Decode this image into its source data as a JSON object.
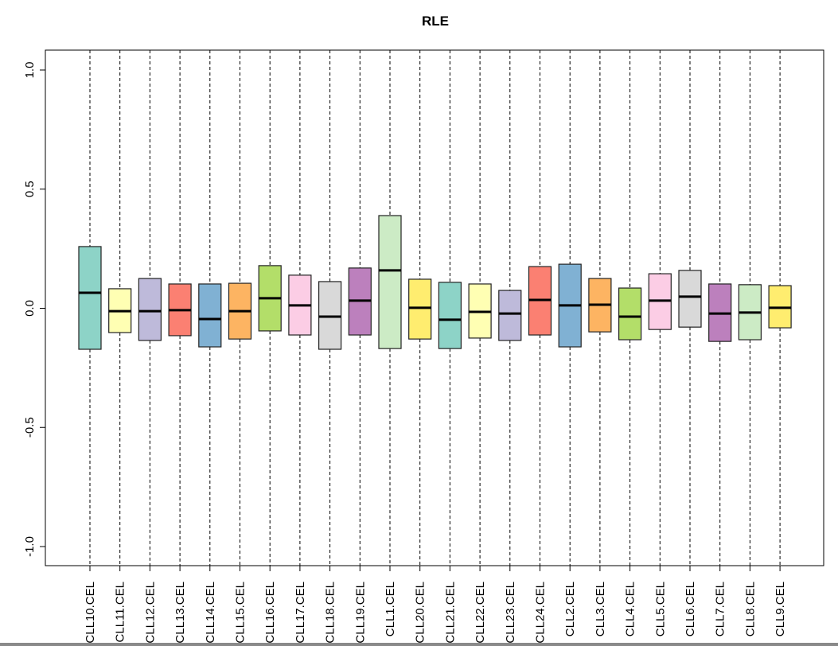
{
  "chart_data": {
    "type": "boxplot",
    "title": "RLE",
    "xlabel": "",
    "ylabel": "",
    "ylim": [
      -1.08,
      1.08
    ],
    "yticks": [
      -1.0,
      -0.5,
      0.0,
      0.5,
      1.0
    ],
    "ytick_labels": [
      "-1.0",
      "-0.5",
      "0.0",
      "0.5",
      "1.0"
    ],
    "grid": false,
    "categories": [
      "CLL10.CEL",
      "CLL11.CEL",
      "CLL12.CEL",
      "CLL13.CEL",
      "CLL14.CEL",
      "CLL15.CEL",
      "CLL16.CEL",
      "CLL17.CEL",
      "CLL18.CEL",
      "CLL19.CEL",
      "CLL1.CEL",
      "CLL20.CEL",
      "CLL21.CEL",
      "CLL22.CEL",
      "CLL23.CEL",
      "CLL24.CEL",
      "CLL2.CEL",
      "CLL3.CEL",
      "CLL4.CEL",
      "CLL5.CEL",
      "CLL6.CEL",
      "CLL7.CEL",
      "CLL8.CEL",
      "CLL9.CEL"
    ],
    "q3": [
      0.259,
      0.082,
      0.125,
      0.102,
      0.102,
      0.105,
      0.179,
      0.139,
      0.112,
      0.169,
      0.389,
      0.122,
      0.109,
      0.102,
      0.075,
      0.175,
      0.185,
      0.125,
      0.085,
      0.145,
      0.159,
      0.102,
      0.099,
      0.095
    ],
    "median": [
      0.065,
      -0.012,
      -0.012,
      -0.008,
      -0.045,
      -0.012,
      0.042,
      0.012,
      -0.035,
      0.032,
      0.159,
      0.002,
      -0.048,
      -0.015,
      -0.022,
      0.035,
      0.012,
      0.015,
      -0.035,
      0.032,
      0.049,
      -0.022,
      -0.018,
      0.002
    ],
    "q1": [
      -0.172,
      -0.102,
      -0.135,
      -0.115,
      -0.162,
      -0.129,
      -0.095,
      -0.112,
      -0.172,
      -0.112,
      -0.169,
      -0.129,
      -0.169,
      -0.125,
      -0.135,
      -0.112,
      -0.162,
      -0.099,
      -0.132,
      -0.089,
      -0.079,
      -0.139,
      -0.132,
      -0.082
    ],
    "colors": [
      "#8DD3C7",
      "#FFFFB3",
      "#BEBADA",
      "#FB8072",
      "#80B1D3",
      "#FDB462",
      "#B3DE69",
      "#FCCDE5",
      "#D9D9D9",
      "#BC80BD",
      "#CCEBC5",
      "#FFED6F",
      "#8DD3C7",
      "#FFFFB3",
      "#BEBADA",
      "#FB8072",
      "#80B1D3",
      "#FDB462",
      "#B3DE69",
      "#FCCDE5",
      "#D9D9D9",
      "#BC80BD",
      "#CCEBC5",
      "#FFED6F"
    ]
  }
}
